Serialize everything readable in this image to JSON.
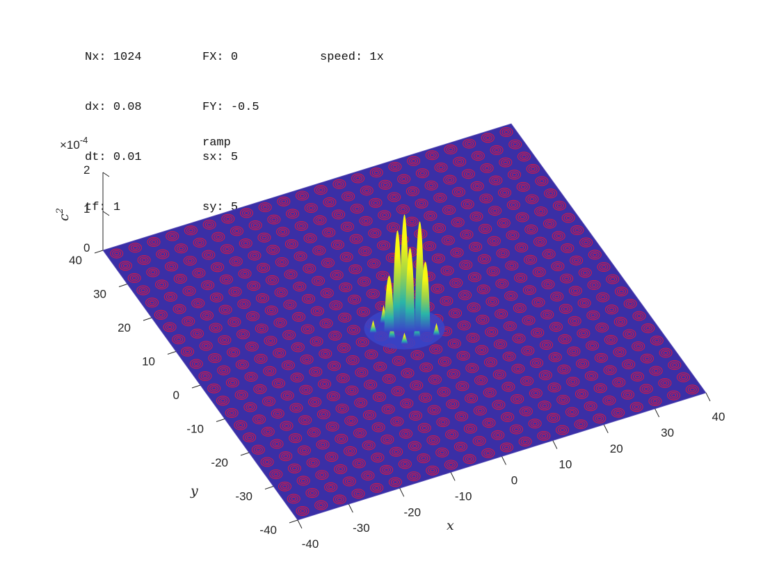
{
  "params": {
    "col1": [
      {
        "label": "Nx:",
        "value": "1024"
      },
      {
        "label": "dx:",
        "value": "0.08"
      },
      {
        "label": "dt:",
        "value": "0.01"
      },
      {
        "label": "tf:",
        "value": "1"
      }
    ],
    "col2": [
      {
        "label": "FX:",
        "value": "0"
      },
      {
        "label": "FY:",
        "value": "-0.5"
      },
      {
        "label": "sx:",
        "value": "5"
      },
      {
        "label": "sy:",
        "value": "5"
      }
    ],
    "col3": [
      {
        "label": "speed:",
        "value": "1x"
      }
    ]
  },
  "colors": {
    "surface": "#3a2fa6",
    "contours": "#d11a48",
    "peak": "#f8f810",
    "mid": "#2ab5a8",
    "base": "#3a44c8"
  },
  "chart_data": {
    "type": "surface",
    "title": "ramp",
    "xlabel": "x",
    "ylabel": "y",
    "zlabel": "c",
    "zlabel_sup": "2",
    "z_multiplier": "×10",
    "z_exponent": "-4",
    "xlim": [
      -40,
      40
    ],
    "ylim": [
      -40,
      40
    ],
    "zlim": [
      0,
      2
    ],
    "x_ticks": [
      "-40",
      "-30",
      "-20",
      "-10",
      "0",
      "10",
      "20",
      "30",
      "40"
    ],
    "y_ticks": [
      "-40",
      "-30",
      "-20",
      "-10",
      "0",
      "10",
      "20",
      "30",
      "40"
    ],
    "z_ticks": [
      "0",
      "1",
      "2"
    ],
    "peak_center": [
      0,
      0
    ],
    "peak_max_scaled": 2
  }
}
